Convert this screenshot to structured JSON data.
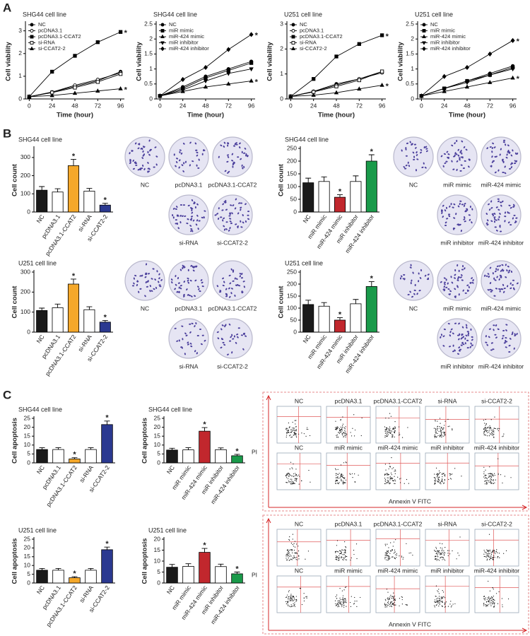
{
  "panel_labels": [
    "A",
    "B",
    "C"
  ],
  "chart_data": [
    {
      "type": "line",
      "title": "SHG44 cell line",
      "x_label": "Time (hour)",
      "y_label": "Cell viability",
      "x": [
        0,
        24,
        48,
        72,
        96
      ],
      "xlim": [
        -4,
        100
      ],
      "xticks": [
        0,
        24,
        48,
        72,
        96
      ],
      "ylim": [
        0,
        3.3
      ],
      "yticks": [
        0,
        1,
        2,
        3
      ],
      "series": [
        {
          "name": "NC",
          "color": "#000000",
          "marker": "circle-filled",
          "values": [
            0.1,
            0.3,
            0.55,
            0.8,
            1.2
          ]
        },
        {
          "name": "pcDNA3.1",
          "color": "#000000",
          "marker": "circle-open",
          "values": [
            0.1,
            0.3,
            0.6,
            0.85,
            1.15
          ]
        },
        {
          "name": "pcDNA3.1-CCAT2",
          "color": "#000000",
          "marker": "square-filled",
          "values": [
            0.1,
            1.2,
            1.9,
            2.5,
            2.95
          ]
        },
        {
          "name": "si-RNA",
          "color": "#000000",
          "marker": "square-open",
          "values": [
            0.1,
            0.28,
            0.5,
            0.75,
            1.1
          ]
        },
        {
          "name": "si-CCAT2-2",
          "color": "#000000",
          "marker": "triangle",
          "values": [
            0.1,
            0.15,
            0.25,
            0.35,
            0.45
          ]
        }
      ],
      "annotations": [
        {
          "text": "*",
          "series": 2,
          "index": 4
        },
        {
          "text": "*",
          "series": 4,
          "index": 4
        }
      ]
    },
    {
      "type": "line",
      "title": "SHG44 cell line",
      "x_label": "Time (hour)",
      "y_label": "Cell viability",
      "x": [
        0,
        24,
        48,
        72,
        96
      ],
      "xlim": [
        -4,
        100
      ],
      "xticks": [
        0,
        24,
        48,
        72,
        96
      ],
      "ylim": [
        0,
        2.5
      ],
      "yticks": [
        0,
        0.5,
        1.0,
        1.5,
        2.0,
        2.5
      ],
      "series": [
        {
          "name": "NC",
          "color": "#000000",
          "marker": "circle-filled",
          "values": [
            0.1,
            0.4,
            0.75,
            1.0,
            1.25
          ]
        },
        {
          "name": "miR mimic",
          "color": "#000000",
          "marker": "square-filled",
          "values": [
            0.1,
            0.35,
            0.7,
            0.95,
            1.2
          ]
        },
        {
          "name": "miR-424 mimic",
          "color": "#000000",
          "marker": "triangle",
          "values": [
            0.1,
            0.25,
            0.4,
            0.5,
            0.6
          ]
        },
        {
          "name": "miR inhibitor",
          "color": "#000000",
          "marker": "triangle-down",
          "values": [
            0.1,
            0.3,
            0.6,
            0.85,
            1.0
          ]
        },
        {
          "name": "miR-424 inhibitor",
          "color": "#000000",
          "marker": "diamond",
          "values": [
            0.1,
            0.65,
            1.05,
            1.65,
            2.15
          ]
        }
      ],
      "annotations": [
        {
          "text": "*",
          "series": 4,
          "index": 4
        },
        {
          "text": "*",
          "series": 2,
          "index": 4
        }
      ]
    },
    {
      "type": "line",
      "title": "U251 cell line",
      "x_label": "Time (hour)",
      "y_label": "Cell viability",
      "x": [
        0,
        24,
        48,
        72,
        96
      ],
      "xlim": [
        -4,
        100
      ],
      "xticks": [
        0,
        24,
        48,
        72,
        96
      ],
      "ylim": [
        0,
        3
      ],
      "yticks": [
        0,
        1,
        2,
        3
      ],
      "series": [
        {
          "name": "NC",
          "color": "#000000",
          "marker": "circle-filled",
          "values": [
            0.1,
            0.3,
            0.6,
            0.8,
            1.1
          ]
        },
        {
          "name": "pcDNA3.1",
          "color": "#000000",
          "marker": "circle-open",
          "values": [
            0.1,
            0.3,
            0.55,
            0.8,
            1.05
          ]
        },
        {
          "name": "pcDNA3.1-CCAT2",
          "color": "#000000",
          "marker": "square-filled",
          "values": [
            0.1,
            0.8,
            1.7,
            2.2,
            2.55
          ]
        },
        {
          "name": "si-RNA",
          "color": "#000000",
          "marker": "square-open",
          "values": [
            0.1,
            0.28,
            0.5,
            0.75,
            1.1
          ]
        },
        {
          "name": "si-CCAT2-2",
          "color": "#000000",
          "marker": "triangle",
          "values": [
            0.1,
            0.15,
            0.25,
            0.4,
            0.55
          ]
        }
      ],
      "annotations": [
        {
          "text": "*",
          "series": 2,
          "index": 4
        },
        {
          "text": "*",
          "series": 4,
          "index": 4
        }
      ]
    },
    {
      "type": "line",
      "title": "U251 cell line",
      "x_label": "Time (hour)",
      "y_label": "Cell viability",
      "x": [
        0,
        24,
        48,
        72,
        96
      ],
      "xlim": [
        -4,
        100
      ],
      "xticks": [
        0,
        24,
        48,
        72,
        96
      ],
      "ylim": [
        0,
        2.5
      ],
      "yticks": [
        0,
        0.5,
        1.0,
        1.5,
        2.0,
        2.5
      ],
      "series": [
        {
          "name": "NC",
          "color": "#000000",
          "marker": "circle-filled",
          "values": [
            0.1,
            0.35,
            0.6,
            0.85,
            1.1
          ]
        },
        {
          "name": "miR mimic",
          "color": "#000000",
          "marker": "square-filled",
          "values": [
            0.1,
            0.35,
            0.6,
            0.8,
            1.05
          ]
        },
        {
          "name": "miR-424 mimic",
          "color": "#000000",
          "marker": "triangle",
          "values": [
            0.1,
            0.25,
            0.4,
            0.55,
            0.7
          ]
        },
        {
          "name": "miR inhibitor",
          "color": "#000000",
          "marker": "triangle-down",
          "values": [
            0.1,
            0.35,
            0.55,
            0.8,
            1.0
          ]
        },
        {
          "name": "miR-424 inhibitor",
          "color": "#000000",
          "marker": "diamond",
          "values": [
            0.1,
            0.75,
            1.05,
            1.5,
            1.95
          ]
        }
      ],
      "annotations": [
        {
          "text": "*",
          "series": 4,
          "index": 4
        },
        {
          "text": "*",
          "series": 2,
          "index": 4
        }
      ]
    },
    {
      "type": "bar",
      "title": "SHG44 cell line",
      "y_label": "Cell count",
      "categories": [
        "NC",
        "pcDNA3.1",
        "pcDNA3.1-CCAT2",
        "si-RNA",
        "si-CCAT2-2"
      ],
      "values": [
        120,
        110,
        255,
        115,
        38
      ],
      "errors": [
        20,
        18,
        35,
        15,
        10
      ],
      "colors": [
        "#1a1a1a",
        "#ffffff",
        "#f5a82a",
        "#ffffff",
        "#2b3990"
      ],
      "ylim": [
        0,
        350
      ],
      "yticks": [
        0,
        100,
        200,
        300
      ],
      "annotations": [
        {
          "text": "*",
          "index": 2
        },
        {
          "text": "*",
          "index": 4
        }
      ]
    },
    {
      "type": "bar",
      "title": "SHG44 cell line",
      "y_label": "Cell count",
      "categories": [
        "NC",
        "miR mimic",
        "miR-424 mimic",
        "miR inhibitor",
        "miR-424 inhibitor"
      ],
      "values": [
        115,
        120,
        58,
        120,
        200
      ],
      "errors": [
        18,
        18,
        10,
        22,
        25
      ],
      "colors": [
        "#1a1a1a",
        "#ffffff",
        "#c1272d",
        "#ffffff",
        "#1a9a4a"
      ],
      "ylim": [
        0,
        250
      ],
      "yticks": [
        0,
        50,
        100,
        150,
        200,
        250
      ],
      "annotations": [
        {
          "text": "*",
          "index": 2
        },
        {
          "text": "*",
          "index": 4
        }
      ]
    },
    {
      "type": "bar",
      "title": "U251 cell line",
      "y_label": "Cell count",
      "categories": [
        "NC",
        "pcDNA3.1",
        "pcDNA3.1-CCAT2",
        "si-RNA",
        "si-CCAT2-2"
      ],
      "values": [
        108,
        122,
        240,
        112,
        50
      ],
      "errors": [
        12,
        18,
        25,
        15,
        8
      ],
      "colors": [
        "#1a1a1a",
        "#ffffff",
        "#f5a82a",
        "#ffffff",
        "#2b3990"
      ],
      "ylim": [
        0,
        300
      ],
      "yticks": [
        0,
        100,
        200,
        300
      ],
      "annotations": [
        {
          "text": "*",
          "index": 2
        },
        {
          "text": "*",
          "index": 4
        }
      ]
    },
    {
      "type": "bar",
      "title": "U251 cell line",
      "y_label": "Cell count",
      "categories": [
        "NC",
        "miR mimic",
        "miR-424 mimic",
        "miR inhibitor",
        "miR-424 inhibitor"
      ],
      "values": [
        115,
        108,
        50,
        118,
        190
      ],
      "errors": [
        18,
        15,
        10,
        18,
        20
      ],
      "colors": [
        "#1a1a1a",
        "#ffffff",
        "#c1272d",
        "#ffffff",
        "#1a9a4a"
      ],
      "ylim": [
        0,
        250
      ],
      "yticks": [
        0,
        50,
        100,
        150,
        200,
        250
      ],
      "annotations": [
        {
          "text": "*",
          "index": 2
        },
        {
          "text": "*",
          "index": 4
        }
      ]
    },
    {
      "type": "bar",
      "title": "SHG44 cell line",
      "y_label": "Cell apoptosis",
      "categories": [
        "NC",
        "pcDNA3.1",
        "pcDNA3.1-CCAT2",
        "si-RNA",
        "si-CCAT2-2"
      ],
      "values": [
        7.5,
        7.5,
        2.2,
        7.5,
        21.5
      ],
      "errors": [
        1,
        1,
        0.7,
        1,
        2
      ],
      "colors": [
        "#1a1a1a",
        "#ffffff",
        "#f5a82a",
        "#ffffff",
        "#2b3990"
      ],
      "ylim": [
        0,
        25
      ],
      "yticks": [
        0,
        5,
        10,
        15,
        20,
        25
      ],
      "annotations": [
        {
          "text": "*",
          "index": 2
        },
        {
          "text": "*",
          "index": 4
        }
      ]
    },
    {
      "type": "bar",
      "title": "SHG44 cell line",
      "y_label": "Cell apoptosis",
      "categories": [
        "NC",
        "miR mimic",
        "miR-424 mimic",
        "miR inhibitor",
        "miR-424 inhibitor"
      ],
      "values": [
        7.2,
        7.3,
        17.8,
        7.4,
        4.0
      ],
      "errors": [
        1,
        1.2,
        2,
        1,
        0.8
      ],
      "colors": [
        "#1a1a1a",
        "#ffffff",
        "#c1272d",
        "#ffffff",
        "#1a9a4a"
      ],
      "ylim": [
        0,
        25
      ],
      "yticks": [
        0,
        5,
        10,
        15,
        20,
        25
      ],
      "annotations": [
        {
          "text": "*",
          "index": 2
        },
        {
          "text": "*",
          "index": 4
        }
      ]
    },
    {
      "type": "bar",
      "title": "U251 cell line",
      "y_label": "Cell apoptosis",
      "categories": [
        "NC",
        "pcDNA3.1",
        "pcDNA3.1-CCAT2",
        "si-RNA",
        "si-CCAT2-2"
      ],
      "values": [
        7.3,
        7.3,
        3.0,
        7.3,
        19
      ],
      "errors": [
        1,
        1,
        0.6,
        1,
        1.5
      ],
      "colors": [
        "#1a1a1a",
        "#ffffff",
        "#f5a82a",
        "#ffffff",
        "#2b3990"
      ],
      "ylim": [
        0,
        25
      ],
      "yticks": [
        0,
        5,
        10,
        15,
        20,
        25
      ],
      "annotations": [
        {
          "text": "*",
          "index": 2
        },
        {
          "text": "*",
          "index": 4
        }
      ]
    },
    {
      "type": "bar",
      "title": "U251 cell line",
      "y_label": "Cell apoptosis",
      "categories": [
        "NC",
        "miR mimic",
        "miR-424 mimic",
        "miR inhibitor",
        "miR-424 inhibitor"
      ],
      "values": [
        7.2,
        7.6,
        14,
        7.5,
        4.2
      ],
      "errors": [
        1.3,
        1.2,
        1.8,
        1.1,
        0.8
      ],
      "colors": [
        "#1a1a1a",
        "#ffffff",
        "#c1272d",
        "#ffffff",
        "#1a9a4a"
      ],
      "ylim": [
        0,
        20
      ],
      "yticks": [
        0,
        5,
        10,
        15,
        20
      ],
      "annotations": [
        {
          "text": "*",
          "index": 2
        },
        {
          "text": "*",
          "index": 4
        }
      ]
    }
  ],
  "colony_plates": [
    {
      "labels": [
        "NC",
        "pcDNA3.1",
        "pcDNA3.1-CCAT2",
        "si-RNA",
        "si-CCAT2-2"
      ]
    },
    {
      "labels": [
        "NC",
        "miR mimic",
        "miR-424 mimic",
        "miR inhibitor",
        "miR-424 inhibitor"
      ]
    },
    {
      "labels": [
        "NC",
        "pcDNA3.1",
        "pcDNA3.1-CCAT2",
        "si-RNA",
        "si-CCAT2-2"
      ]
    },
    {
      "labels": [
        "NC",
        "miR mimic",
        "miR-424 mimic",
        "miR inhibitor",
        "miR-424 inhibitor"
      ]
    }
  ],
  "flow_cytometry": [
    {
      "labels": [
        "NC",
        "pcDNA3.1",
        "pcDNA3.1-CCAT2",
        "si-RNA",
        "si-CCAT2-2",
        "NC",
        "miR mimic",
        "miR-424 mimic",
        "miR inhibitor",
        "miR-424 inhibitor"
      ],
      "y_label": "PI",
      "x_label": "Annexin V FITC"
    },
    {
      "labels": [
        "NC",
        "pcDNA3.1",
        "pcDNA3.1-CCAT2",
        "si-RNA",
        "si-CCAT2-2",
        "NC",
        "miR mimic",
        "miR-424 mimic",
        "miR inhibitor",
        "miR-424 inhibitor"
      ],
      "y_label": "PI",
      "x_label": "Annexin V FITC"
    }
  ]
}
